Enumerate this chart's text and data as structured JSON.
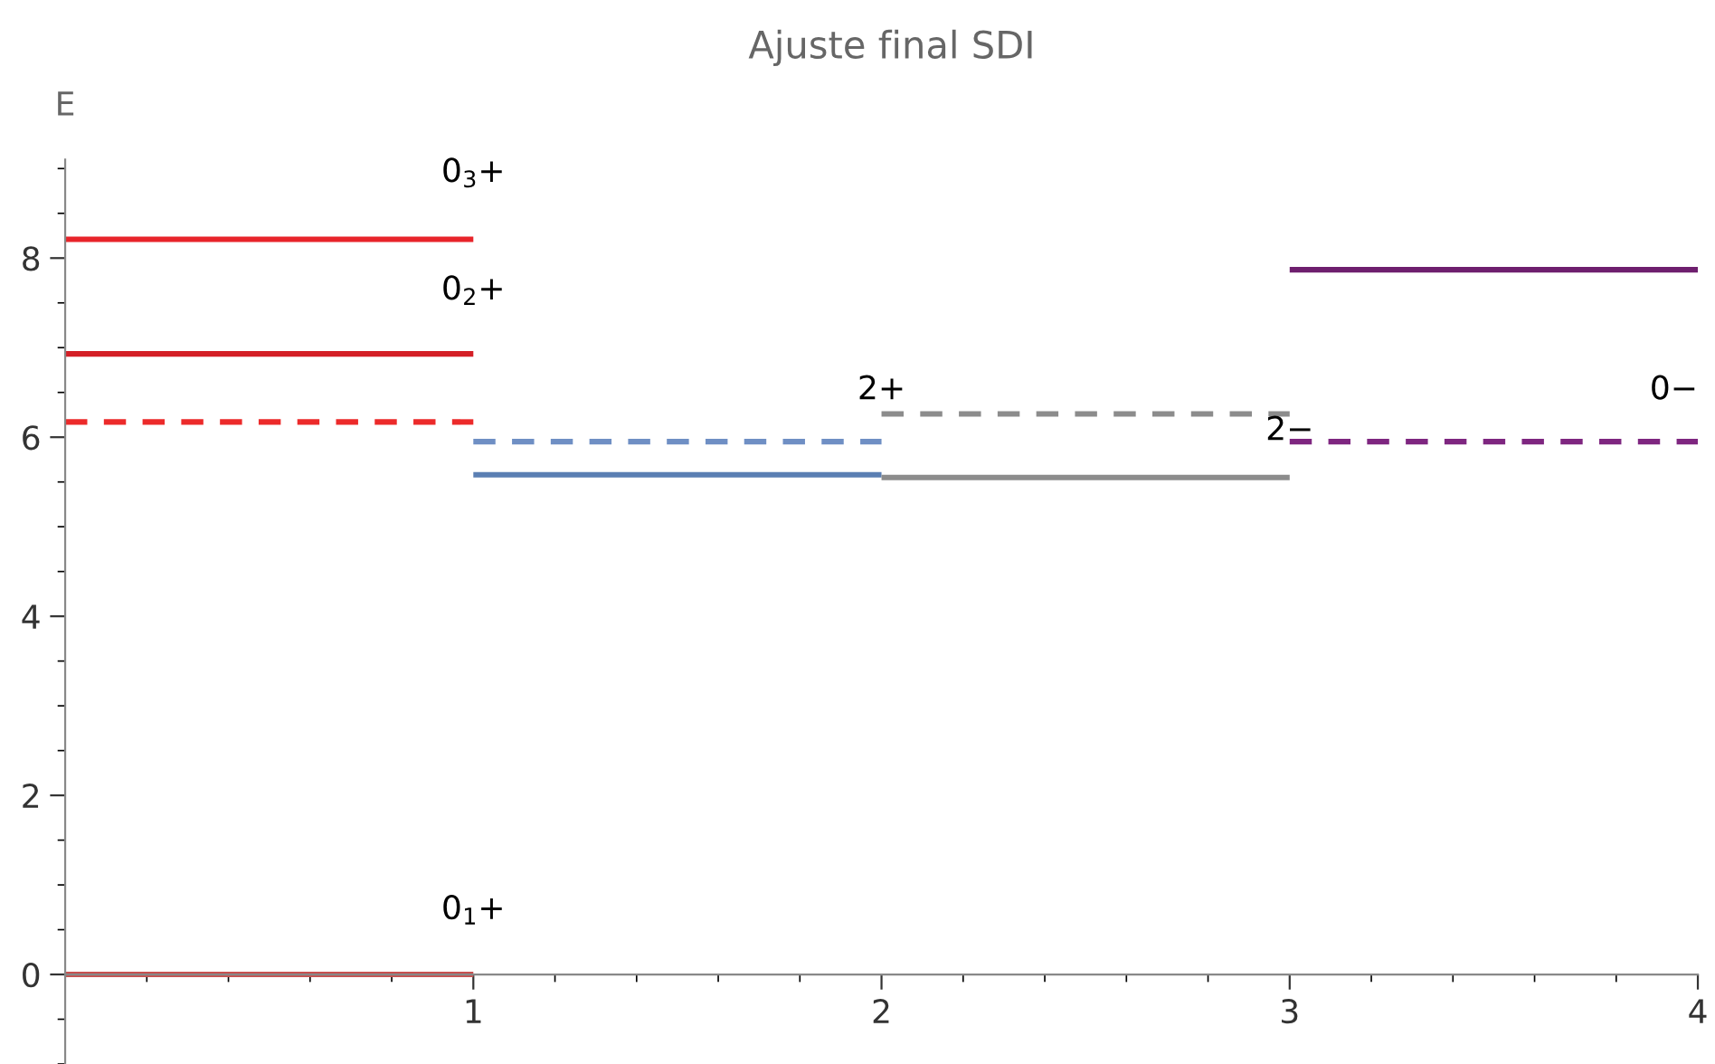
{
  "chart_data": {
    "type": "line",
    "title": "Ajuste final SDI",
    "ylabel": "E",
    "series": [
      {
        "x": [
          0,
          1
        ],
        "values": [
          0,
          0
        ],
        "color": "#c8504f",
        "line_style": "solid"
      },
      {
        "x": [
          0,
          1
        ],
        "values": [
          8.21,
          8.21
        ],
        "color": "#e8242a",
        "line_style": "solid"
      },
      {
        "x": [
          0,
          1
        ],
        "values": [
          6.93,
          6.93
        ],
        "color": "#d41f26",
        "line_style": "solid"
      },
      {
        "x": [
          0,
          1
        ],
        "values": [
          6.17,
          6.17
        ],
        "color": "#ec2a2a",
        "line_style": "dashed"
      },
      {
        "x": [
          1,
          2
        ],
        "values": [
          5.58,
          5.58
        ],
        "color": "#5b7fb3",
        "line_style": "solid"
      },
      {
        "x": [
          1,
          2
        ],
        "values": [
          5.95,
          5.95
        ],
        "color": "#6f8fc4",
        "line_style": "dashed"
      },
      {
        "x": [
          2,
          3
        ],
        "values": [
          5.55,
          5.55
        ],
        "color": "#8c8c8c",
        "line_style": "solid"
      },
      {
        "x": [
          2,
          3
        ],
        "values": [
          6.26,
          6.26
        ],
        "color": "#8c8c8c",
        "line_style": "dashed"
      },
      {
        "x": [
          3,
          4
        ],
        "values": [
          7.87,
          7.87
        ],
        "color": "#6e1f6e",
        "line_style": "solid"
      },
      {
        "x": [
          3,
          4
        ],
        "values": [
          5.95,
          5.95
        ],
        "color": "#7e2680",
        "line_style": "dashed"
      }
    ],
    "annotations": [
      "0$_{3}$+",
      "0$_{2}$+",
      "0$_{1}$+",
      "2+",
      "2−",
      "0−"
    ],
    "xlim": [
      0,
      4
    ],
    "ylim": [
      -1,
      9.1
    ],
    "xticks": [
      1,
      2,
      3,
      4
    ],
    "yticks": [
      0,
      2,
      4,
      6,
      8
    ],
    "grid": false,
    "legend": false
  }
}
